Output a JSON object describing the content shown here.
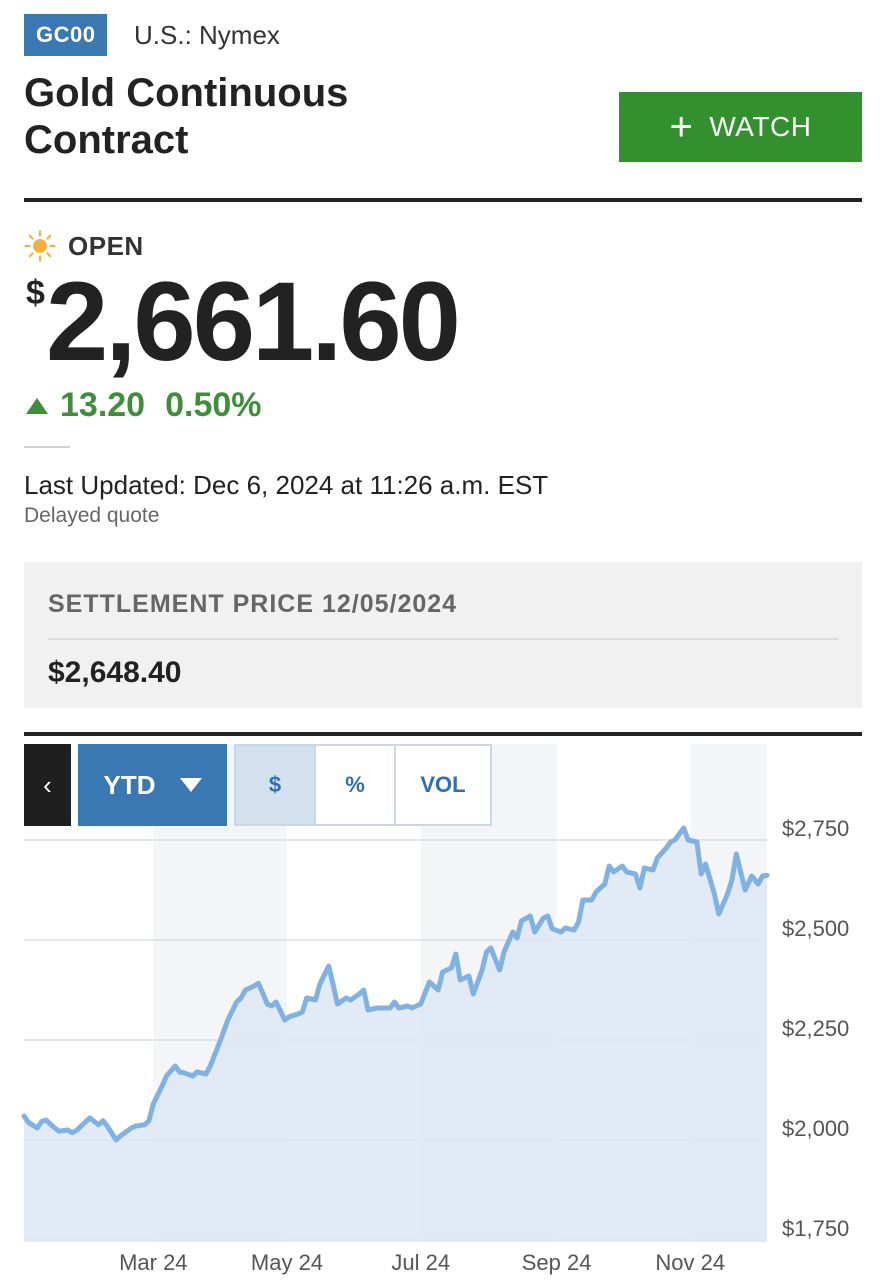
{
  "quote": {
    "ticker": "GC00",
    "exchange": "U.S.: Nymex",
    "title": "Gold Continuous Contract",
    "watch_label": "WATCH",
    "status": "OPEN",
    "currency_symbol": "$",
    "price": "2,661.60",
    "change": "13.20",
    "change_pct": "0.50%",
    "last_updated": "Last Updated: Dec 6, 2024 at 11:26 a.m. EST",
    "delayed_label": "Delayed quote"
  },
  "settlement": {
    "label": "SETTLEMENT PRICE 12/05/2024",
    "value": "$2,648.40"
  },
  "chart_controls": {
    "back_label": "‹",
    "range_label": "YTD",
    "toggle_dollar": "$",
    "toggle_percent": "%",
    "toggle_volume": "VOL",
    "active_toggle": "$"
  },
  "colors": {
    "accent_blue": "#3a78b4",
    "watch_green": "#33902f",
    "positive_green": "#3e8e3a",
    "line_blue": "#7fb1e2",
    "area_fill": "#dde8f3"
  },
  "chart_data": {
    "type": "area",
    "x_unit": "date",
    "y_unit": "USD",
    "x_tick_labels": [
      "Mar 24",
      "May 24",
      "Jul 24",
      "Sep 24",
      "Nov 24"
    ],
    "y_tick_labels": [
      "$2,750",
      "$2,500",
      "$2,250",
      "$2,000",
      "$1,750"
    ],
    "y_ticks": [
      2750,
      2500,
      2250,
      2000,
      1750
    ],
    "ylim": [
      1750,
      2780
    ],
    "xlim": [
      "2024-01-02",
      "2024-12-06"
    ],
    "y_axis_position": "right",
    "grid": true,
    "series": [
      {
        "values": [
          [
            "2024-01-02",
            2060
          ],
          [
            "2024-01-04",
            2044
          ],
          [
            "2024-01-08",
            2030
          ],
          [
            "2024-01-10",
            2046
          ],
          [
            "2024-01-12",
            2050
          ],
          [
            "2024-01-16",
            2030
          ],
          [
            "2024-01-18",
            2022
          ],
          [
            "2024-01-22",
            2025
          ],
          [
            "2024-01-24",
            2018
          ],
          [
            "2024-01-26",
            2024
          ],
          [
            "2024-01-30",
            2045
          ],
          [
            "2024-02-01",
            2055
          ],
          [
            "2024-02-05",
            2038
          ],
          [
            "2024-02-07",
            2048
          ],
          [
            "2024-02-09",
            2035
          ],
          [
            "2024-02-13",
            2000
          ],
          [
            "2024-02-15",
            2010
          ],
          [
            "2024-02-20",
            2030
          ],
          [
            "2024-02-22",
            2035
          ],
          [
            "2024-02-26",
            2038
          ],
          [
            "2024-02-28",
            2048
          ],
          [
            "2024-03-01",
            2090
          ],
          [
            "2024-03-05",
            2135
          ],
          [
            "2024-03-07",
            2160
          ],
          [
            "2024-03-11",
            2185
          ],
          [
            "2024-03-13",
            2170
          ],
          [
            "2024-03-15",
            2168
          ],
          [
            "2024-03-19",
            2160
          ],
          [
            "2024-03-21",
            2170
          ],
          [
            "2024-03-25",
            2165
          ],
          [
            "2024-03-27",
            2185
          ],
          [
            "2024-04-01",
            2255
          ],
          [
            "2024-04-04",
            2300
          ],
          [
            "2024-04-08",
            2345
          ],
          [
            "2024-04-10",
            2355
          ],
          [
            "2024-04-12",
            2375
          ],
          [
            "2024-04-16",
            2385
          ],
          [
            "2024-04-18",
            2392
          ],
          [
            "2024-04-22",
            2340
          ],
          [
            "2024-04-24",
            2335
          ],
          [
            "2024-04-26",
            2345
          ],
          [
            "2024-04-30",
            2300
          ],
          [
            "2024-05-02",
            2308
          ],
          [
            "2024-05-06",
            2315
          ],
          [
            "2024-05-08",
            2320
          ],
          [
            "2024-05-10",
            2355
          ],
          [
            "2024-05-14",
            2350
          ],
          [
            "2024-05-16",
            2390
          ],
          [
            "2024-05-20",
            2435
          ],
          [
            "2024-05-22",
            2390
          ],
          [
            "2024-05-24",
            2340
          ],
          [
            "2024-05-28",
            2355
          ],
          [
            "2024-05-30",
            2350
          ],
          [
            "2024-06-03",
            2365
          ],
          [
            "2024-06-05",
            2375
          ],
          [
            "2024-06-07",
            2325
          ],
          [
            "2024-06-11",
            2330
          ],
          [
            "2024-06-13",
            2330
          ],
          [
            "2024-06-17",
            2330
          ],
          [
            "2024-06-19",
            2345
          ],
          [
            "2024-06-21",
            2330
          ],
          [
            "2024-06-25",
            2335
          ],
          [
            "2024-06-27",
            2330
          ],
          [
            "2024-07-01",
            2340
          ],
          [
            "2024-07-03",
            2368
          ],
          [
            "2024-07-05",
            2395
          ],
          [
            "2024-07-09",
            2375
          ],
          [
            "2024-07-11",
            2420
          ],
          [
            "2024-07-15",
            2430
          ],
          [
            "2024-07-17",
            2465
          ],
          [
            "2024-07-19",
            2400
          ],
          [
            "2024-07-23",
            2410
          ],
          [
            "2024-07-25",
            2365
          ],
          [
            "2024-07-29",
            2425
          ],
          [
            "2024-07-31",
            2470
          ],
          [
            "2024-08-02",
            2480
          ],
          [
            "2024-08-06",
            2425
          ],
          [
            "2024-08-08",
            2470
          ],
          [
            "2024-08-12",
            2520
          ],
          [
            "2024-08-14",
            2505
          ],
          [
            "2024-08-16",
            2548
          ],
          [
            "2024-08-20",
            2560
          ],
          [
            "2024-08-22",
            2520
          ],
          [
            "2024-08-26",
            2555
          ],
          [
            "2024-08-28",
            2560
          ],
          [
            "2024-08-30",
            2528
          ],
          [
            "2024-09-03",
            2520
          ],
          [
            "2024-09-05",
            2530
          ],
          [
            "2024-09-09",
            2525
          ],
          [
            "2024-09-11",
            2545
          ],
          [
            "2024-09-13",
            2600
          ],
          [
            "2024-09-17",
            2600
          ],
          [
            "2024-09-19",
            2620
          ],
          [
            "2024-09-23",
            2640
          ],
          [
            "2024-09-25",
            2685
          ],
          [
            "2024-09-27",
            2670
          ],
          [
            "2024-10-01",
            2685
          ],
          [
            "2024-10-03",
            2670
          ],
          [
            "2024-10-07",
            2665
          ],
          [
            "2024-10-09",
            2630
          ],
          [
            "2024-10-11",
            2680
          ],
          [
            "2024-10-15",
            2675
          ],
          [
            "2024-10-17",
            2705
          ],
          [
            "2024-10-21",
            2730
          ],
          [
            "2024-10-23",
            2745
          ],
          [
            "2024-10-25",
            2750
          ],
          [
            "2024-10-29",
            2780
          ],
          [
            "2024-10-31",
            2750
          ],
          [
            "2024-11-04",
            2745
          ],
          [
            "2024-11-06",
            2665
          ],
          [
            "2024-11-08",
            2690
          ],
          [
            "2024-11-12",
            2615
          ],
          [
            "2024-11-14",
            2565
          ],
          [
            "2024-11-18",
            2615
          ],
          [
            "2024-11-20",
            2650
          ],
          [
            "2024-11-22",
            2715
          ],
          [
            "2024-11-26",
            2625
          ],
          [
            "2024-11-29",
            2660
          ],
          [
            "2024-12-02",
            2640
          ],
          [
            "2024-12-04",
            2660
          ],
          [
            "2024-12-06",
            2661.6
          ]
        ]
      }
    ]
  }
}
